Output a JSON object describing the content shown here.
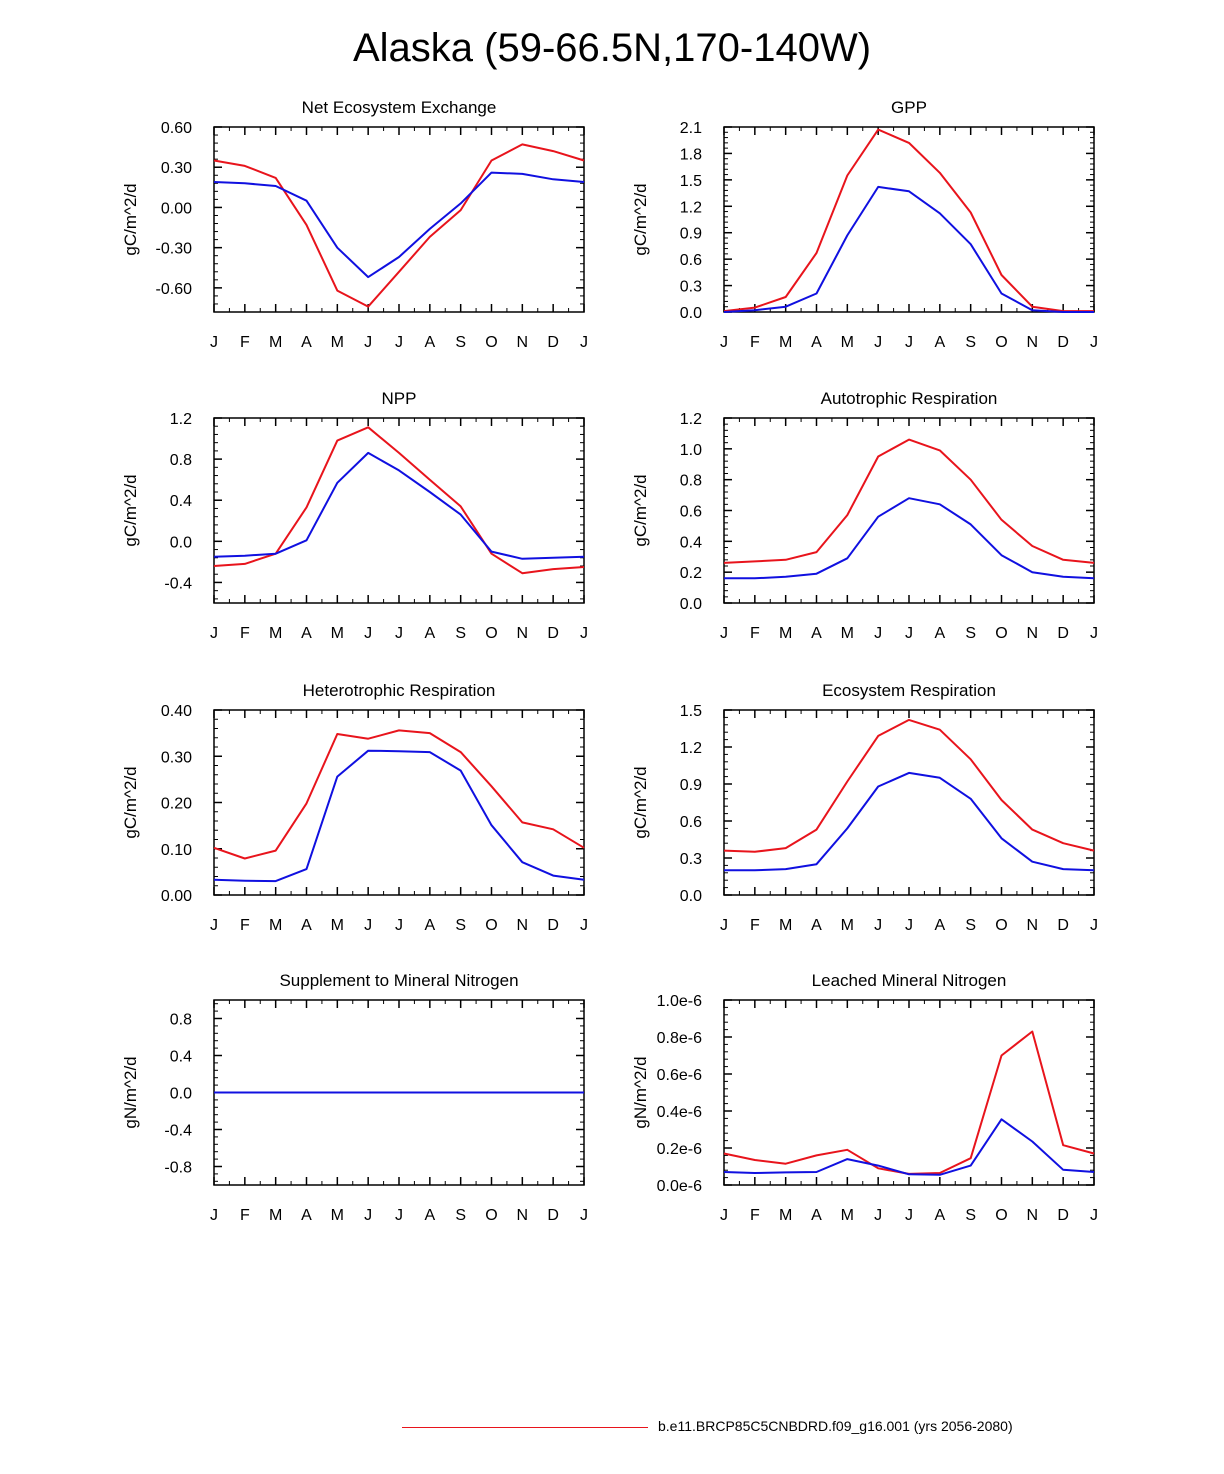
{
  "title": "Alaska (59-66.5N,170-140W)",
  "legend": {
    "label": "b.e11.BRCP85C5CNBDRD.f09_g16.001 (yrs 2056-2080)",
    "color": "#e8141c"
  },
  "colors": {
    "red": "#e8141c",
    "blue": "#1010e0"
  },
  "chart_data": [
    {
      "type": "line",
      "title": "Net Ecosystem Exchange",
      "ylabel": "gC/m^2/d",
      "categories": [
        "J",
        "F",
        "M",
        "A",
        "M",
        "J",
        "J",
        "A",
        "S",
        "O",
        "N",
        "D",
        "J"
      ],
      "ylim": [
        -0.78,
        0.6
      ],
      "yticks": [
        -0.6,
        -0.3,
        0.0,
        0.3,
        0.6
      ],
      "ytick_labels": [
        "-0.60",
        "-0.30",
        "0.00",
        "0.30",
        "0.60"
      ],
      "series": [
        {
          "name": "red",
          "values": [
            0.35,
            0.31,
            0.22,
            -0.13,
            -0.62,
            -0.74,
            -0.48,
            -0.22,
            -0.02,
            0.35,
            0.47,
            0.42,
            0.35
          ]
        },
        {
          "name": "blue",
          "values": [
            0.19,
            0.18,
            0.16,
            0.05,
            -0.3,
            -0.52,
            -0.37,
            -0.16,
            0.03,
            0.26,
            0.25,
            0.21,
            0.19
          ]
        }
      ]
    },
    {
      "type": "line",
      "title": "GPP",
      "ylabel": "gC/m^2/d",
      "categories": [
        "J",
        "F",
        "M",
        "A",
        "M",
        "J",
        "J",
        "A",
        "S",
        "O",
        "N",
        "D",
        "J"
      ],
      "ylim": [
        0.0,
        2.1
      ],
      "yticks": [
        0.0,
        0.3,
        0.6,
        0.9,
        1.2,
        1.5,
        1.8,
        2.1
      ],
      "ytick_labels": [
        "0.0",
        "0.3",
        "0.6",
        "0.9",
        "1.2",
        "1.5",
        "1.8",
        "2.1"
      ],
      "series": [
        {
          "name": "red",
          "values": [
            0.01,
            0.05,
            0.17,
            0.67,
            1.55,
            2.07,
            1.92,
            1.58,
            1.13,
            0.42,
            0.06,
            0.01,
            0.01
          ]
        },
        {
          "name": "blue",
          "values": [
            0.0,
            0.02,
            0.06,
            0.21,
            0.87,
            1.42,
            1.37,
            1.12,
            0.77,
            0.21,
            0.02,
            0.0,
            0.0
          ]
        }
      ]
    },
    {
      "type": "line",
      "title": "NPP",
      "ylabel": "gC/m^2/d",
      "categories": [
        "J",
        "F",
        "M",
        "A",
        "M",
        "J",
        "J",
        "A",
        "S",
        "O",
        "N",
        "D",
        "J"
      ],
      "ylim": [
        -0.6,
        1.2
      ],
      "yticks": [
        -0.4,
        0.0,
        0.4,
        0.8,
        1.2
      ],
      "ytick_labels": [
        "-0.4",
        "0.0",
        "0.4",
        "0.8",
        "1.2"
      ],
      "series": [
        {
          "name": "red",
          "values": [
            -0.24,
            -0.22,
            -0.12,
            0.33,
            0.98,
            1.11,
            0.86,
            0.6,
            0.34,
            -0.12,
            -0.31,
            -0.27,
            -0.25
          ]
        },
        {
          "name": "blue",
          "values": [
            -0.15,
            -0.14,
            -0.12,
            0.01,
            0.57,
            0.86,
            0.69,
            0.48,
            0.26,
            -0.1,
            -0.17,
            -0.16,
            -0.15
          ]
        }
      ]
    },
    {
      "type": "line",
      "title": "Autotrophic Respiration",
      "ylabel": "gC/m^2/d",
      "categories": [
        "J",
        "F",
        "M",
        "A",
        "M",
        "J",
        "J",
        "A",
        "S",
        "O",
        "N",
        "D",
        "J"
      ],
      "ylim": [
        0.0,
        1.2
      ],
      "yticks": [
        0.0,
        0.2,
        0.4,
        0.6,
        0.8,
        1.0,
        1.2
      ],
      "ytick_labels": [
        "0.0",
        "0.2",
        "0.4",
        "0.6",
        "0.8",
        "1.0",
        "1.2"
      ],
      "series": [
        {
          "name": "red",
          "values": [
            0.26,
            0.27,
            0.28,
            0.33,
            0.57,
            0.95,
            1.06,
            0.99,
            0.8,
            0.54,
            0.37,
            0.28,
            0.26
          ]
        },
        {
          "name": "blue",
          "values": [
            0.16,
            0.16,
            0.17,
            0.19,
            0.29,
            0.56,
            0.68,
            0.64,
            0.51,
            0.31,
            0.2,
            0.17,
            0.16
          ]
        }
      ]
    },
    {
      "type": "line",
      "title": "Heterotrophic Respiration",
      "ylabel": "gC/m^2/d",
      "categories": [
        "J",
        "F",
        "M",
        "A",
        "M",
        "J",
        "J",
        "A",
        "S",
        "O",
        "N",
        "D",
        "J"
      ],
      "ylim": [
        0.0,
        0.4
      ],
      "yticks": [
        0.0,
        0.1,
        0.2,
        0.3,
        0.4
      ],
      "ytick_labels": [
        "0.00",
        "0.10",
        "0.20",
        "0.30",
        "0.40"
      ],
      "series": [
        {
          "name": "red",
          "values": [
            0.102,
            0.079,
            0.096,
            0.198,
            0.348,
            0.338,
            0.356,
            0.35,
            0.309,
            0.235,
            0.157,
            0.142,
            0.102
          ]
        },
        {
          "name": "blue",
          "values": [
            0.033,
            0.031,
            0.03,
            0.056,
            0.256,
            0.312,
            0.311,
            0.309,
            0.269,
            0.151,
            0.071,
            0.042,
            0.033
          ]
        }
      ]
    },
    {
      "type": "line",
      "title": "Ecosystem Respiration",
      "ylabel": "gC/m^2/d",
      "categories": [
        "J",
        "F",
        "M",
        "A",
        "M",
        "J",
        "J",
        "A",
        "S",
        "O",
        "N",
        "D",
        "J"
      ],
      "ylim": [
        0.0,
        1.5
      ],
      "yticks": [
        0.0,
        0.3,
        0.6,
        0.9,
        1.2,
        1.5
      ],
      "ytick_labels": [
        "0.0",
        "0.3",
        "0.6",
        "0.9",
        "1.2",
        "1.5"
      ],
      "series": [
        {
          "name": "red",
          "values": [
            0.36,
            0.35,
            0.38,
            0.53,
            0.92,
            1.29,
            1.42,
            1.34,
            1.1,
            0.77,
            0.53,
            0.42,
            0.36
          ]
        },
        {
          "name": "blue",
          "values": [
            0.2,
            0.2,
            0.21,
            0.25,
            0.54,
            0.88,
            0.99,
            0.95,
            0.78,
            0.46,
            0.27,
            0.21,
            0.2
          ]
        }
      ]
    },
    {
      "type": "line",
      "title": "Supplement to Mineral Nitrogen",
      "ylabel": "gN/m^2/d",
      "categories": [
        "J",
        "F",
        "M",
        "A",
        "M",
        "J",
        "J",
        "A",
        "S",
        "O",
        "N",
        "D",
        "J"
      ],
      "ylim": [
        -1.0,
        1.0
      ],
      "yticks": [
        -0.8,
        -0.4,
        0.0,
        0.4,
        0.8
      ],
      "ytick_labels": [
        "-0.8",
        "-0.4",
        "0.0",
        "0.4",
        "0.8"
      ],
      "series": [
        {
          "name": "red",
          "values": [
            0,
            0,
            0,
            0,
            0,
            0,
            0,
            0,
            0,
            0,
            0,
            0,
            0
          ]
        },
        {
          "name": "blue",
          "values": [
            0,
            0,
            0,
            0,
            0,
            0,
            0,
            0,
            0,
            0,
            0,
            0,
            0
          ]
        }
      ]
    },
    {
      "type": "line",
      "title": "Leached Mineral Nitrogen",
      "ylabel": "gN/m^2/d",
      "categories": [
        "J",
        "F",
        "M",
        "A",
        "M",
        "J",
        "J",
        "A",
        "S",
        "O",
        "N",
        "D",
        "J"
      ],
      "ylim": [
        0.0,
        1e-06
      ],
      "yticks": [
        0.0,
        2e-07,
        4e-07,
        6e-07,
        8e-07,
        1e-06
      ],
      "ytick_labels": [
        "0.0e-6",
        "0.2e-6",
        "0.4e-6",
        "0.6e-6",
        "0.8e-6",
        "1.0e-6"
      ],
      "series": [
        {
          "name": "red",
          "values": [
            1.7e-07,
            1.35e-07,
            1.15e-07,
            1.6e-07,
            1.9e-07,
            9e-08,
            6e-08,
            6.5e-08,
            1.45e-07,
            7e-07,
            8.3e-07,
            2.15e-07,
            1.7e-07
          ]
        },
        {
          "name": "blue",
          "values": [
            7e-08,
            6.5e-08,
            6.8e-08,
            7e-08,
            1.4e-07,
            1.05e-07,
            5.8e-08,
            5.5e-08,
            1.05e-07,
            3.55e-07,
            2.35e-07,
            8.2e-08,
            7e-08
          ]
        }
      ]
    }
  ]
}
